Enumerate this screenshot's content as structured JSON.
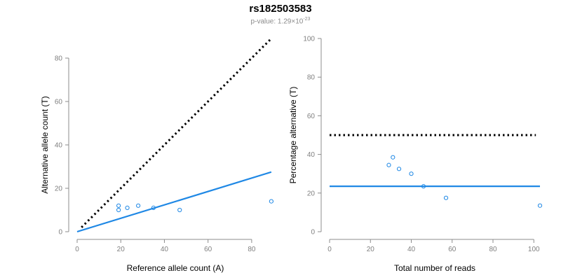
{
  "header": {
    "title": "rs182503583",
    "subtitle_prefix": "p-value: 1.29×10",
    "subtitle_exponent": "-23"
  },
  "chart_data": [
    {
      "type": "scatter",
      "xlabel": "Reference allele count (A)",
      "ylabel": "Alternative allele count (T)",
      "xlim": [
        0,
        90
      ],
      "ylim": [
        0,
        80
      ],
      "xticks": [
        0,
        20,
        40,
        60,
        80
      ],
      "yticks": [
        0,
        20,
        40,
        60,
        80
      ],
      "points": [
        {
          "x": 19,
          "y": 12
        },
        {
          "x": 19,
          "y": 10
        },
        {
          "x": 23,
          "y": 11
        },
        {
          "x": 28,
          "y": 12
        },
        {
          "x": 35,
          "y": 11
        },
        {
          "x": 47,
          "y": 10
        },
        {
          "x": 89,
          "y": 14
        }
      ],
      "reference_line": {
        "style": "dotted",
        "color": "#000000",
        "from": [
          2,
          2
        ],
        "to": [
          89,
          89
        ]
      },
      "fit_line": {
        "style": "solid",
        "color": "#1f88e5",
        "from": [
          0,
          0
        ],
        "to": [
          89,
          27.5
        ]
      },
      "point_color": "#1f88e5",
      "grid": false
    },
    {
      "type": "scatter",
      "xlabel": "Total number of reads",
      "ylabel": "Percentage alternative (T)",
      "xlim": [
        0,
        103
      ],
      "ylim": [
        0,
        100
      ],
      "xticks": [
        0,
        20,
        40,
        60,
        80,
        100
      ],
      "yticks": [
        0,
        20,
        40,
        60,
        80,
        100
      ],
      "points": [
        {
          "x": 29,
          "y": 34.5
        },
        {
          "x": 31,
          "y": 38.5
        },
        {
          "x": 34,
          "y": 32.5
        },
        {
          "x": 40,
          "y": 30
        },
        {
          "x": 46,
          "y": 23.5
        },
        {
          "x": 57,
          "y": 17.5
        },
        {
          "x": 103,
          "y": 13.5
        }
      ],
      "reference_line": {
        "style": "dotted",
        "color": "#000000",
        "from": [
          0,
          50
        ],
        "to": [
          101,
          50
        ]
      },
      "fit_line": {
        "style": "solid",
        "color": "#1f88e5",
        "from": [
          0,
          23.5
        ],
        "to": [
          103,
          23.5
        ]
      },
      "point_color": "#1f88e5",
      "grid": false
    }
  ]
}
